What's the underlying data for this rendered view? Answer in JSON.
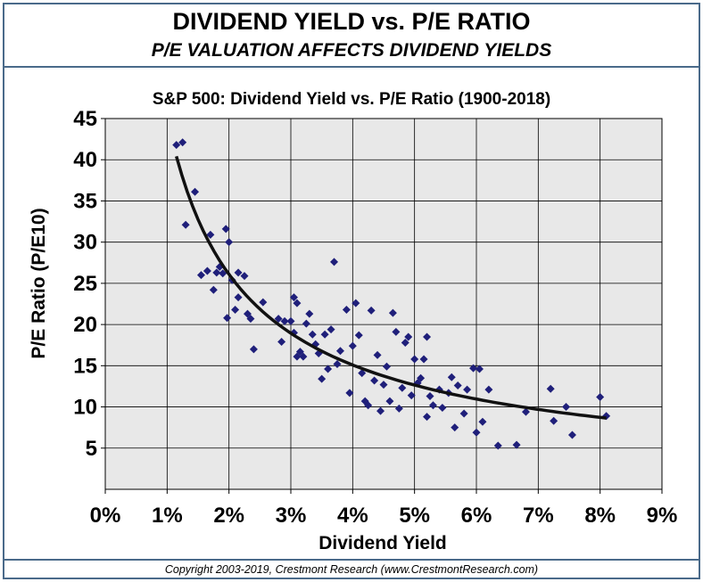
{
  "header": {
    "title": "DIVIDEND YIELD vs. P/E RATIO",
    "subtitle": "P/E VALUATION AFFECTS DIVIDEND YIELDS"
  },
  "footer": {
    "copyright": "Copyright 2003-2019, Crestmont Research (www.CrestmontResearch.com)"
  },
  "colors": {
    "frame": "#4a6a8a",
    "plot_bg": "#e8e8e8",
    "gridline": "#000000",
    "marker": "#1f1f7a",
    "trendline": "#111111"
  },
  "chart_data": {
    "type": "scatter",
    "title": "S&P 500: Dividend Yield vs. P/E Ratio (1900-2018)",
    "xlabel": "Dividend Yield",
    "ylabel": "P/E Ratio (P/E10)",
    "xlim": [
      0,
      9
    ],
    "ylim": [
      0,
      45
    ],
    "x_unit": "%",
    "x_ticks": [
      0,
      1,
      2,
      3,
      4,
      5,
      6,
      7,
      8,
      9
    ],
    "x_tick_labels": [
      "0%",
      "1%",
      "2%",
      "3%",
      "4%",
      "5%",
      "6%",
      "7%",
      "8%",
      "9%"
    ],
    "y_ticks": [
      5,
      10,
      15,
      20,
      25,
      30,
      35,
      40,
      45
    ],
    "y_tick_labels": [
      "5",
      "10",
      "15",
      "20",
      "25",
      "30",
      "35",
      "40",
      "45"
    ],
    "grid": true,
    "legend": "none",
    "trendline": "power",
    "points": [
      [
        1.15,
        41.8
      ],
      [
        1.25,
        42.1
      ],
      [
        1.3,
        32.1
      ],
      [
        1.45,
        36.1
      ],
      [
        1.55,
        26
      ],
      [
        1.65,
        26.5
      ],
      [
        1.7,
        30.9
      ],
      [
        1.75,
        24.2
      ],
      [
        1.8,
        26.3
      ],
      [
        1.85,
        27
      ],
      [
        1.9,
        26.2
      ],
      [
        1.95,
        31.6
      ],
      [
        1.97,
        20.8
      ],
      [
        2.0,
        30
      ],
      [
        2.05,
        25.4
      ],
      [
        2.1,
        21.8
      ],
      [
        2.15,
        26.3
      ],
      [
        2.15,
        23.3
      ],
      [
        2.25,
        25.9
      ],
      [
        2.3,
        21.3
      ],
      [
        2.35,
        20.7
      ],
      [
        2.4,
        17
      ],
      [
        2.55,
        22.7
      ],
      [
        2.8,
        20.7
      ],
      [
        2.85,
        17.9
      ],
      [
        2.9,
        20.4
      ],
      [
        3.0,
        20.4
      ],
      [
        3.05,
        23.3
      ],
      [
        3.05,
        19
      ],
      [
        3.1,
        16.1
      ],
      [
        3.1,
        22.6
      ],
      [
        3.15,
        16.7
      ],
      [
        3.2,
        16.1
      ],
      [
        3.25,
        20.1
      ],
      [
        3.3,
        21.3
      ],
      [
        3.35,
        18.8
      ],
      [
        3.4,
        17.6
      ],
      [
        3.45,
        16.5
      ],
      [
        3.5,
        13.4
      ],
      [
        3.55,
        18.8
      ],
      [
        3.6,
        14.6
      ],
      [
        3.65,
        19.4
      ],
      [
        3.7,
        27.6
      ],
      [
        3.75,
        15.2
      ],
      [
        3.8,
        16.8
      ],
      [
        3.9,
        21.8
      ],
      [
        3.95,
        11.7
      ],
      [
        4.0,
        17.4
      ],
      [
        4.05,
        22.6
      ],
      [
        4.1,
        18.7
      ],
      [
        4.15,
        14.1
      ],
      [
        4.2,
        10.7
      ],
      [
        4.25,
        10.2
      ],
      [
        4.3,
        21.7
      ],
      [
        4.35,
        13.2
      ],
      [
        4.4,
        16.3
      ],
      [
        4.45,
        9.5
      ],
      [
        4.5,
        12.7
      ],
      [
        4.55,
        14.9
      ],
      [
        4.6,
        10.7
      ],
      [
        4.65,
        21.4
      ],
      [
        4.7,
        19.1
      ],
      [
        4.75,
        9.8
      ],
      [
        4.8,
        12.3
      ],
      [
        4.85,
        17.8
      ],
      [
        4.9,
        18.5
      ],
      [
        4.95,
        11.4
      ],
      [
        5.0,
        15.8
      ],
      [
        5.05,
        12.9
      ],
      [
        5.1,
        13.5
      ],
      [
        5.15,
        15.8
      ],
      [
        5.2,
        18.5
      ],
      [
        5.2,
        8.8
      ],
      [
        5.25,
        11.3
      ],
      [
        5.3,
        10.2
      ],
      [
        5.4,
        12.1
      ],
      [
        5.45,
        9.9
      ],
      [
        5.55,
        11.7
      ],
      [
        5.6,
        13.6
      ],
      [
        5.65,
        7.5
      ],
      [
        5.7,
        12.6
      ],
      [
        5.8,
        9.2
      ],
      [
        5.85,
        12.1
      ],
      [
        5.95,
        14.7
      ],
      [
        6.0,
        6.9
      ],
      [
        6.05,
        14.6
      ],
      [
        6.1,
        8.2
      ],
      [
        6.2,
        12.1
      ],
      [
        6.35,
        5.3
      ],
      [
        6.65,
        5.4
      ],
      [
        6.8,
        9.4
      ],
      [
        7.2,
        12.2
      ],
      [
        7.25,
        8.3
      ],
      [
        7.45,
        10
      ],
      [
        7.55,
        6.6
      ],
      [
        8.0,
        11.2
      ],
      [
        8.1,
        8.9
      ]
    ]
  }
}
